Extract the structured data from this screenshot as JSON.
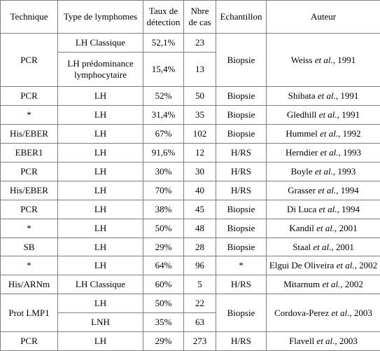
{
  "table": {
    "header": [
      "Technique",
      "Type de lymphomes",
      "Taux de détection",
      "Nbre de cas",
      "Echantillon",
      "Auteur"
    ],
    "rows": [
      [
        "PCR",
        "LH Classique",
        "52,1%",
        "23",
        "Biopsie",
        {
          "name": "Weiss",
          "etal": "et al.,",
          "year": "1991"
        }
      ],
      [
        "LH prédominance lymphocytaire",
        "15,4%",
        "13"
      ],
      [
        "PCR",
        "LH",
        "52%",
        "50",
        "Biopsie",
        {
          "name": "Shibata",
          "etal": "et al.,",
          "year": "1991"
        }
      ],
      [
        "*",
        "LH",
        "31,4%",
        "35",
        "Biopsie",
        {
          "name": "Gledhill",
          "etal": "et al.,",
          "year": "1991"
        }
      ],
      [
        "His/EBER",
        "LH",
        "67%",
        "102",
        "Biopsie",
        {
          "name": "Hummel",
          "etal": "et al.,",
          "year": "1992"
        }
      ],
      [
        "EBER1",
        "LH",
        "91,6%",
        "12",
        "H/RS",
        {
          "name": "Herndier",
          "etal": "et al.,",
          "year": "1993"
        }
      ],
      [
        "PCR",
        "LH",
        "30%",
        "30",
        "H/RS",
        {
          "name": "Boyle",
          "etal": "et al.,",
          "year": "1993"
        }
      ],
      [
        "His/EBER",
        "LH",
        "70%",
        "40",
        "H/RS",
        {
          "name": "Grasser",
          "etal": "et al.,",
          "year": "1994"
        }
      ],
      [
        "PCR",
        "LH",
        "38%",
        "45",
        "Biopsie",
        {
          "name": "Di Luca",
          "etal": "et al.,",
          "year": "1994"
        }
      ],
      [
        "*",
        "LH",
        "50%",
        "48",
        "Biopsie",
        {
          "name": "Kandil",
          "etal": "et al.,",
          "year": "2001"
        }
      ],
      [
        "SB",
        "LH",
        "29%",
        "28",
        "Biopsie",
        {
          "name": "Staal",
          "etal": "et al.,",
          "year": "2001"
        }
      ],
      [
        "*",
        "LH",
        "64%",
        "96",
        "*",
        {
          "name": "Elgui De Oliveira",
          "etal": "et al.,",
          "year": "2002"
        }
      ],
      [
        "His/ARNm",
        "LH Classique",
        "60%",
        "5",
        "H/RS",
        {
          "name": "Mitarnum",
          "etal": "et al.,",
          "year": "2002"
        }
      ],
      [
        "Prot LMP1",
        "LH",
        "50%",
        "22",
        "Biopsie",
        {
          "name": "Cordova-Perez",
          "etal": "et al.,",
          "year": "2003"
        }
      ],
      [
        "LNH",
        "35%",
        "63"
      ],
      [
        "PCR",
        "LH",
        "29%",
        "273",
        "H/RS",
        {
          "name": "Flavell",
          "etal": "et al.,",
          "year": "2003"
        }
      ]
    ]
  }
}
